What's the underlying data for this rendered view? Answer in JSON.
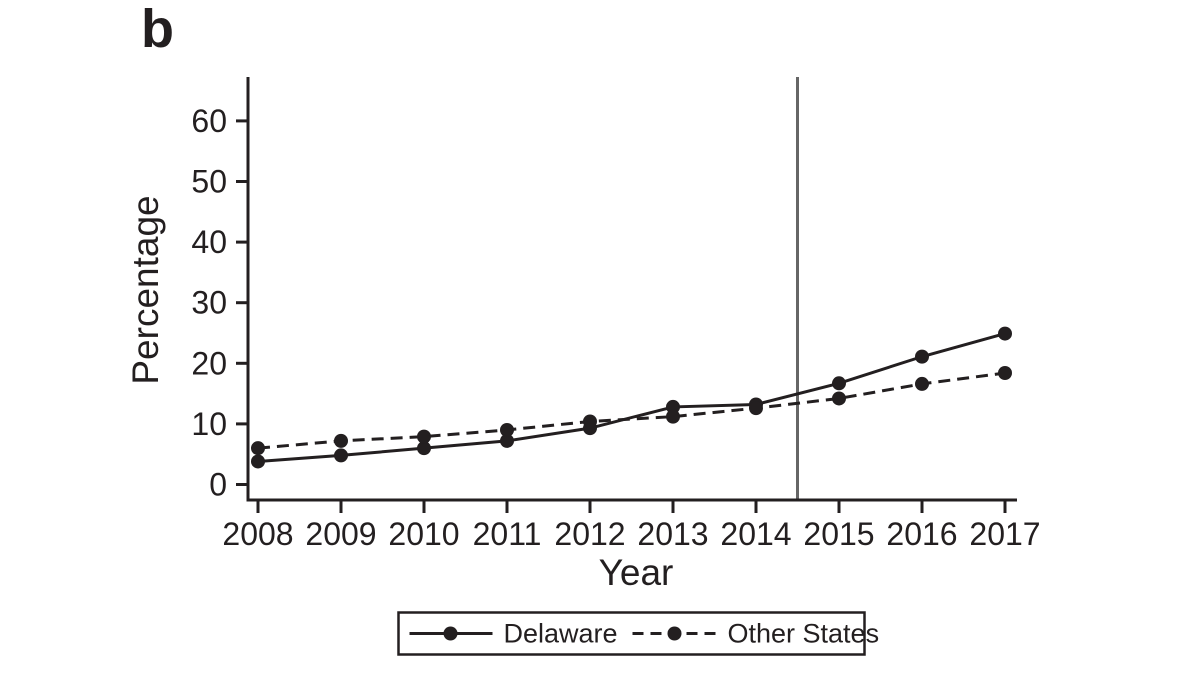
{
  "figure": {
    "panel_label": "b",
    "background_color": "#ffffff",
    "ink_color": "#231f20",
    "reference_line_color": "#666666"
  },
  "chart_data": {
    "type": "line",
    "title": "",
    "xlabel": "Year",
    "ylabel": "Percentage",
    "x": [
      2008,
      2009,
      2010,
      2011,
      2012,
      2013,
      2014,
      2015,
      2016,
      2017
    ],
    "series": [
      {
        "name": "Delaware",
        "line_style": "solid",
        "marker": "circle",
        "values": [
          3.8,
          4.8,
          6.0,
          7.2,
          9.3,
          12.8,
          13.2,
          16.7,
          21.1,
          24.9
        ]
      },
      {
        "name": "Other States",
        "line_style": "dashed",
        "marker": "circle",
        "values": [
          6.0,
          7.2,
          7.9,
          9.0,
          10.4,
          11.2,
          12.6,
          14.2,
          16.6,
          18.4
        ]
      }
    ],
    "ylim": [
      0,
      67
    ],
    "yticks": [
      0,
      10,
      20,
      30,
      40,
      50,
      60
    ],
    "xticks": [
      2008,
      2009,
      2010,
      2011,
      2012,
      2013,
      2014,
      2015,
      2016,
      2017
    ],
    "reference_line_x": 2014.5,
    "grid": false,
    "legend_position": "bottom-center",
    "legend_entries": [
      "Delaware",
      "Other States"
    ]
  }
}
